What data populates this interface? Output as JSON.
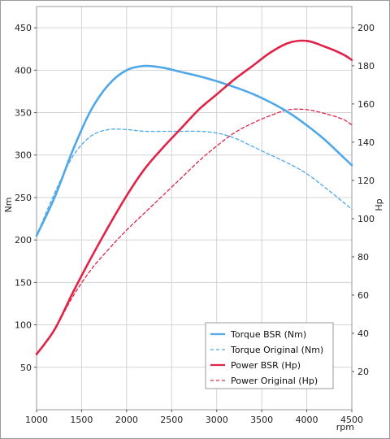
{
  "chart_data": {
    "type": "line",
    "title": "",
    "xlabel": "rpm",
    "ylabel_left": "Nm",
    "ylabel_right": "Hp",
    "xlim": [
      1000,
      4500
    ],
    "ylim_left": [
      0,
      475
    ],
    "ylim_right": [
      0,
      211
    ],
    "x_ticks": [
      1000,
      1500,
      2000,
      2500,
      3000,
      3500,
      4000,
      4500
    ],
    "y_left_ticks": [
      50,
      100,
      150,
      200,
      250,
      300,
      350,
      400,
      450
    ],
    "y_right_ticks": [
      20,
      40,
      60,
      80,
      100,
      120,
      140,
      160,
      180,
      200
    ],
    "grid": true,
    "legend_position": "bottom-right",
    "colors": {
      "torque": "#4fa8e8",
      "power": "#e02448"
    },
    "series": [
      {
        "name": "Torque BSR (Nm)",
        "axis": "left",
        "style": "solid",
        "color": "#4fa8e8",
        "x": [
          1000,
          1200,
          1400,
          1600,
          1800,
          2000,
          2200,
          2400,
          2600,
          2800,
          3000,
          3200,
          3400,
          3600,
          3800,
          4000,
          4200,
          4400,
          4500
        ],
        "values": [
          205,
          250,
          305,
          352,
          383,
          400,
          405,
          403,
          398,
          393,
          387,
          380,
          372,
          362,
          350,
          335,
          318,
          298,
          288
        ]
      },
      {
        "name": "Torque Original (Nm)",
        "axis": "left",
        "style": "dashed",
        "color": "#4fa8e8",
        "x": [
          1000,
          1200,
          1400,
          1600,
          1800,
          2000,
          2200,
          2400,
          2600,
          2800,
          3000,
          3200,
          3400,
          3600,
          3800,
          4000,
          4200,
          4400,
          4500
        ],
        "values": [
          205,
          255,
          298,
          322,
          330,
          330,
          328,
          328,
          328,
          328,
          326,
          320,
          310,
          300,
          290,
          278,
          262,
          245,
          236
        ]
      },
      {
        "name": "Power BSR (Hp)",
        "axis": "right",
        "style": "solid",
        "color": "#e02448",
        "x": [
          1000,
          1200,
          1400,
          1600,
          1800,
          2000,
          2200,
          2400,
          2600,
          2800,
          3000,
          3200,
          3400,
          3600,
          3800,
          4000,
          4200,
          4400,
          4500
        ],
        "values": [
          29,
          42,
          61,
          79,
          96,
          112,
          126,
          137,
          147,
          157,
          165,
          173,
          180,
          187,
          192,
          193,
          190,
          186,
          183
        ]
      },
      {
        "name": "Power Original (Hp)",
        "axis": "right",
        "style": "dashed",
        "color": "#e02448",
        "x": [
          1000,
          1200,
          1400,
          1600,
          1800,
          2000,
          2200,
          2400,
          2600,
          2800,
          3000,
          3200,
          3400,
          3600,
          3800,
          4000,
          4200,
          4400,
          4500
        ],
        "values": [
          29,
          42,
          59,
          73,
          84,
          94,
          103,
          112,
          121,
          130,
          138,
          145,
          150,
          154,
          157,
          157,
          155,
          152,
          149
        ]
      }
    ]
  }
}
